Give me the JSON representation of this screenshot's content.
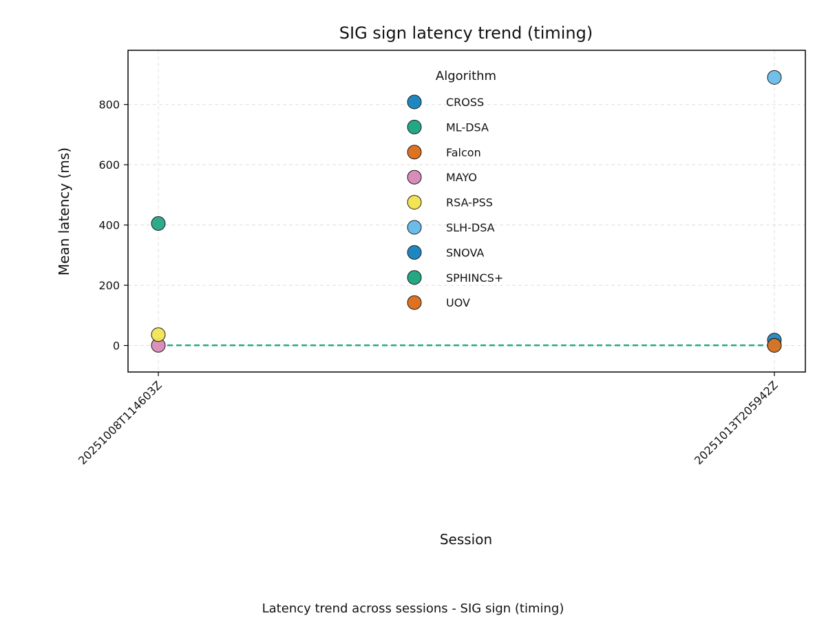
{
  "chart_data": {
    "type": "scatter",
    "title": "SIG sign latency trend (timing)",
    "xlabel": "Session",
    "ylabel": "Mean latency (ms)",
    "caption": "Latency trend across sessions - SIG sign (timing)",
    "categories": [
      "20251008T114603Z",
      "20251013T205942Z"
    ],
    "ylim": [
      -88,
      980
    ],
    "yticks": [
      0,
      200,
      400,
      600,
      800
    ],
    "grid": true,
    "legend": {
      "title": "Algorithm",
      "placement": "top-center"
    },
    "series": [
      {
        "name": "CROSS",
        "color": "#1f87c0",
        "values": [
          null,
          18
        ]
      },
      {
        "name": "ML-DSA",
        "color": "#23a883",
        "values": [
          405,
          0.5
        ]
      },
      {
        "name": "Falcon",
        "color": "#dd7223",
        "values": [
          null,
          0.4
        ]
      },
      {
        "name": "MAYO",
        "color": "#d88cb9",
        "values": [
          0.5,
          null
        ]
      },
      {
        "name": "RSA-PSS",
        "color": "#f2e454",
        "values": [
          36,
          null
        ]
      },
      {
        "name": "SLH-DSA",
        "color": "#6bbceb",
        "values": [
          null,
          890
        ]
      },
      {
        "name": "SNOVA",
        "color": "#1f87c0",
        "values": [
          null,
          null
        ]
      },
      {
        "name": "SPHINCS+",
        "color": "#23a883",
        "values": [
          null,
          null
        ]
      },
      {
        "name": "UOV",
        "color": "#dd7223",
        "values": [
          null,
          null
        ]
      }
    ],
    "trend_line": {
      "series": "ML-DSA",
      "style": "dashed",
      "color": "#23a883"
    }
  }
}
